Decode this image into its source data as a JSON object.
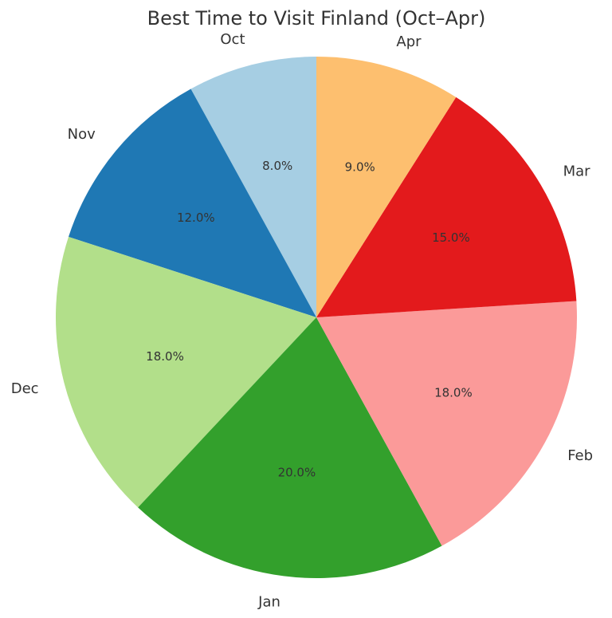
{
  "chart_data": {
    "type": "pie",
    "title": "Best Time to Visit Finland (Oct–Apr)",
    "categories": [
      "Oct",
      "Nov",
      "Dec",
      "Jan",
      "Feb",
      "Mar",
      "Apr"
    ],
    "values": [
      8.0,
      12.0,
      18.0,
      20.0,
      18.0,
      15.0,
      9.0
    ],
    "value_labels": [
      "8.0%",
      "12.0%",
      "18.0%",
      "20.0%",
      "18.0%",
      "15.0%",
      "9.0%"
    ],
    "colors": [
      "#a6cee3",
      "#1f78b4",
      "#b2df8a",
      "#33a02c",
      "#fb9a99",
      "#e31a1c",
      "#fdbf6f"
    ],
    "start_angle_deg": 90,
    "direction": "counterclockwise",
    "legend": "none"
  }
}
